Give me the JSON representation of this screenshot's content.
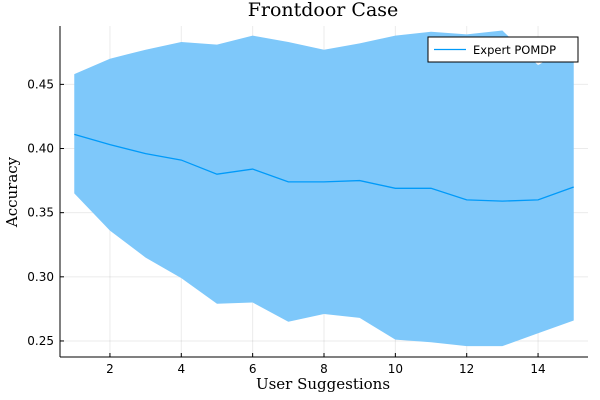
{
  "chart_data": {
    "type": "line",
    "title": "Frontdoor Case",
    "xlabel": "User Suggestions",
    "ylabel": "Accuracy",
    "xlim": [
      0.6,
      15.4
    ],
    "ylim": [
      0.2375,
      0.4955
    ],
    "x_ticks": [
      2,
      4,
      6,
      8,
      10,
      12,
      14
    ],
    "x_tick_labels": [
      "2",
      "4",
      "6",
      "8",
      "10",
      "12",
      "14"
    ],
    "y_ticks": [
      0.25,
      0.3,
      0.35,
      0.4,
      0.45
    ],
    "y_tick_labels": [
      "0.25",
      "0.30",
      "0.35",
      "0.40",
      "0.45"
    ],
    "grid": true,
    "legend_position": "top-right",
    "band_color": "#7ec8fa",
    "series": [
      {
        "name": "Expert POMDP",
        "color": "#009af9",
        "x": [
          1,
          2,
          3,
          4,
          5,
          6,
          7,
          8,
          9,
          10,
          11,
          12,
          13,
          14,
          15
        ],
        "y": [
          0.411,
          0.403,
          0.396,
          0.391,
          0.38,
          0.384,
          0.374,
          0.374,
          0.375,
          0.369,
          0.369,
          0.36,
          0.359,
          0.36,
          0.37
        ],
        "upper": [
          0.458,
          0.47,
          0.477,
          0.483,
          0.481,
          0.488,
          0.483,
          0.477,
          0.482,
          0.488,
          0.491,
          0.489,
          0.492,
          0.465,
          0.481
        ],
        "lower": [
          0.365,
          0.336,
          0.315,
          0.299,
          0.279,
          0.28,
          0.265,
          0.271,
          0.268,
          0.251,
          0.249,
          0.246,
          0.246,
          0.256,
          0.266
        ]
      }
    ]
  }
}
